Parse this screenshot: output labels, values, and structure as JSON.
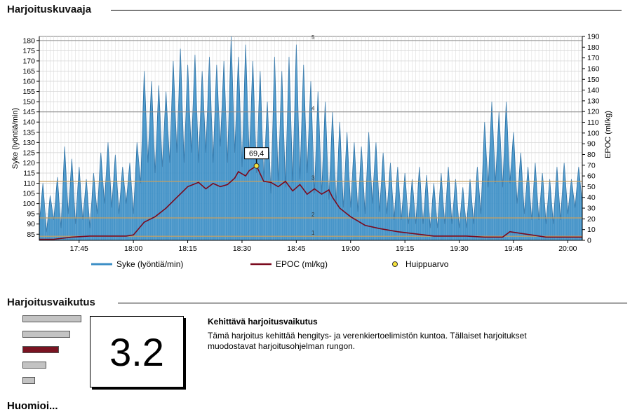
{
  "section_chart": {
    "title": "Harjoituskuvaaja"
  },
  "section_effect": {
    "title": "Harjoitusvaikutus"
  },
  "next_section": {
    "title": "Huomioi..."
  },
  "chart_data": {
    "type": "line",
    "x_tick_labels": [
      "17:45",
      "18:00",
      "18:15",
      "18:30",
      "18:45",
      "19:00",
      "19:15",
      "19:30",
      "19:45",
      "20:00"
    ],
    "x_tick_minutes": [
      45,
      60,
      75,
      90,
      105,
      120,
      135,
      150,
      165,
      180
    ],
    "xlim_minutes": [
      34,
      184
    ],
    "y_left": {
      "label": "Syke (lyöntiä/min)",
      "lim": [
        82,
        182
      ],
      "ticks": [
        85,
        90,
        95,
        100,
        105,
        110,
        115,
        120,
        125,
        130,
        135,
        140,
        145,
        150,
        155,
        160,
        165,
        170,
        175,
        180
      ]
    },
    "y_right": {
      "label": "EPOC (ml/kg)",
      "lim": [
        0,
        190
      ],
      "ticks": [
        0,
        10,
        20,
        30,
        40,
        50,
        60,
        70,
        80,
        90,
        100,
        110,
        120,
        130,
        140,
        150,
        160,
        170,
        180,
        190
      ]
    },
    "zone_lines": [
      {
        "label": "5",
        "hr": 180,
        "color": "#9a9a9a"
      },
      {
        "label": "4",
        "hr": 145,
        "color": "#8a8a8a"
      },
      {
        "label": "3",
        "hr": 111,
        "color": "#c8a060"
      },
      {
        "label": "2",
        "hr": 93,
        "color": "#c8a060"
      },
      {
        "label": "1",
        "hr": 84,
        "color": "#c8a060"
      }
    ],
    "series": [
      {
        "name": "Syke (lyöntiä/min)",
        "color": "#3d8fc6",
        "kind": "area",
        "points": [
          [
            34,
            90
          ],
          [
            35,
            110
          ],
          [
            36,
            86
          ],
          [
            37,
            104
          ],
          [
            38,
            92
          ],
          [
            39,
            113
          ],
          [
            40,
            88
          ],
          [
            41,
            128
          ],
          [
            42,
            95
          ],
          [
            43,
            122
          ],
          [
            44,
            90
          ],
          [
            45,
            118
          ],
          [
            46,
            92
          ],
          [
            47,
            112
          ],
          [
            48,
            88
          ],
          [
            49,
            115
          ],
          [
            50,
            95
          ],
          [
            51,
            125
          ],
          [
            52,
            100
          ],
          [
            53,
            130
          ],
          [
            54,
            98
          ],
          [
            55,
            124
          ],
          [
            56,
            95
          ],
          [
            57,
            118
          ],
          [
            58,
            100
          ],
          [
            59,
            120
          ],
          [
            60,
            95
          ],
          [
            61,
            130
          ],
          [
            62,
            110
          ],
          [
            63,
            165
          ],
          [
            64,
            120
          ],
          [
            65,
            160
          ],
          [
            66,
            115
          ],
          [
            67,
            158
          ],
          [
            68,
            118
          ],
          [
            69,
            155
          ],
          [
            70,
            120
          ],
          [
            71,
            170
          ],
          [
            72,
            125
          ],
          [
            73,
            176
          ],
          [
            74,
            120
          ],
          [
            75,
            168
          ],
          [
            76,
            125
          ],
          [
            77,
            173
          ],
          [
            78,
            120
          ],
          [
            79,
            165
          ],
          [
            80,
            125
          ],
          [
            81,
            172
          ],
          [
            82,
            120
          ],
          [
            83,
            168
          ],
          [
            84,
            128
          ],
          [
            85,
            170
          ],
          [
            86,
            120
          ],
          [
            87,
            182
          ],
          [
            88,
            125
          ],
          [
            89,
            172
          ],
          [
            90,
            118
          ],
          [
            91,
            178
          ],
          [
            92,
            122
          ],
          [
            93,
            170
          ],
          [
            94,
            115
          ],
          [
            95,
            165
          ],
          [
            96,
            112
          ],
          [
            97,
            150
          ],
          [
            98,
            105
          ],
          [
            99,
            172
          ],
          [
            100,
            110
          ],
          [
            101,
            165
          ],
          [
            102,
            108
          ],
          [
            103,
            172
          ],
          [
            104,
            110
          ],
          [
            105,
            178
          ],
          [
            106,
            112
          ],
          [
            107,
            168
          ],
          [
            108,
            115
          ],
          [
            109,
            160
          ],
          [
            110,
            105
          ],
          [
            111,
            155
          ],
          [
            112,
            105
          ],
          [
            113,
            150
          ],
          [
            114,
            102
          ],
          [
            115,
            145
          ],
          [
            116,
            100
          ],
          [
            117,
            140
          ],
          [
            118,
            98
          ],
          [
            119,
            135
          ],
          [
            120,
            98
          ],
          [
            121,
            130
          ],
          [
            122,
            96
          ],
          [
            123,
            128
          ],
          [
            124,
            95
          ],
          [
            125,
            135
          ],
          [
            126,
            100
          ],
          [
            127,
            130
          ],
          [
            128,
            96
          ],
          [
            129,
            125
          ],
          [
            130,
            95
          ],
          [
            131,
            120
          ],
          [
            132,
            92
          ],
          [
            133,
            118
          ],
          [
            134,
            92
          ],
          [
            135,
            115
          ],
          [
            136,
            90
          ],
          [
            137,
            112
          ],
          [
            138,
            90
          ],
          [
            139,
            118
          ],
          [
            140,
            90
          ],
          [
            141,
            114
          ],
          [
            142,
            88
          ],
          [
            143,
            110
          ],
          [
            144,
            88
          ],
          [
            145,
            115
          ],
          [
            146,
            90
          ],
          [
            147,
            118
          ],
          [
            148,
            90
          ],
          [
            149,
            112
          ],
          [
            150,
            88
          ],
          [
            151,
            108
          ],
          [
            152,
            88
          ],
          [
            153,
            112
          ],
          [
            154,
            90
          ],
          [
            155,
            118
          ],
          [
            156,
            95
          ],
          [
            157,
            140
          ],
          [
            158,
            108
          ],
          [
            159,
            150
          ],
          [
            160,
            110
          ],
          [
            161,
            145
          ],
          [
            162,
            108
          ],
          [
            163,
            150
          ],
          [
            164,
            110
          ],
          [
            165,
            135
          ],
          [
            166,
            100
          ],
          [
            167,
            125
          ],
          [
            168,
            95
          ],
          [
            169,
            118
          ],
          [
            170,
            92
          ],
          [
            171,
            120
          ],
          [
            172,
            92
          ],
          [
            173,
            115
          ],
          [
            174,
            90
          ],
          [
            175,
            112
          ],
          [
            176,
            90
          ],
          [
            177,
            118
          ],
          [
            178,
            92
          ],
          [
            179,
            120
          ],
          [
            180,
            95
          ],
          [
            181,
            112
          ],
          [
            182,
            98
          ],
          [
            183,
            118
          ],
          [
            184,
            100
          ]
        ]
      },
      {
        "name": "EPOC (ml/kg)",
        "color": "#7a0a1e",
        "kind": "line",
        "points": [
          [
            34,
            1
          ],
          [
            38,
            1
          ],
          [
            43,
            3
          ],
          [
            48,
            4
          ],
          [
            53,
            4
          ],
          [
            58,
            4
          ],
          [
            60,
            5
          ],
          [
            63,
            17
          ],
          [
            66,
            22
          ],
          [
            69,
            30
          ],
          [
            72,
            40
          ],
          [
            75,
            50
          ],
          [
            78,
            54
          ],
          [
            80,
            48
          ],
          [
            82,
            53
          ],
          [
            84,
            50
          ],
          [
            86,
            52
          ],
          [
            88,
            58
          ],
          [
            89,
            64
          ],
          [
            91,
            60
          ],
          [
            92,
            65
          ],
          [
            94,
            69.4
          ],
          [
            96,
            55
          ],
          [
            98,
            54
          ],
          [
            100,
            50
          ],
          [
            102,
            55
          ],
          [
            104,
            46
          ],
          [
            106,
            52
          ],
          [
            108,
            43
          ],
          [
            110,
            48
          ],
          [
            112,
            43
          ],
          [
            114,
            47
          ],
          [
            115,
            40
          ],
          [
            117,
            30
          ],
          [
            120,
            22
          ],
          [
            124,
            14
          ],
          [
            128,
            11
          ],
          [
            133,
            8
          ],
          [
            138,
            6
          ],
          [
            143,
            4
          ],
          [
            148,
            4
          ],
          [
            152,
            4
          ],
          [
            157,
            3
          ],
          [
            162,
            3
          ],
          [
            164,
            8
          ],
          [
            168,
            6
          ],
          [
            174,
            3
          ],
          [
            180,
            3
          ],
          [
            184,
            3
          ]
        ]
      }
    ],
    "peak": {
      "name": "Huippuarvo",
      "minute": 94,
      "value": 69.4,
      "label": "69,4",
      "color": "#f5e23a"
    },
    "legend": {
      "placement": "bottom",
      "items": [
        "Syke (lyöntiä/min)",
        "EPOC (ml/kg)",
        "Huippuarvo"
      ]
    }
  },
  "effect": {
    "score": "3.2",
    "heading": "Kehittävä harjoitusvaikutus",
    "description": "Tämä harjoitus kehittää hengitys- ja verenkiertoelimistön kuntoa. Tällaiset harjoitukset muodostavat harjoitusohjelman rungon.",
    "levels": [
      {
        "level": 5
      },
      {
        "level": 4
      },
      {
        "level": 3,
        "active": true
      },
      {
        "level": 2
      },
      {
        "level": 1
      }
    ],
    "active_color": "#7a1422",
    "inactive_color": "#c3c3c3"
  }
}
